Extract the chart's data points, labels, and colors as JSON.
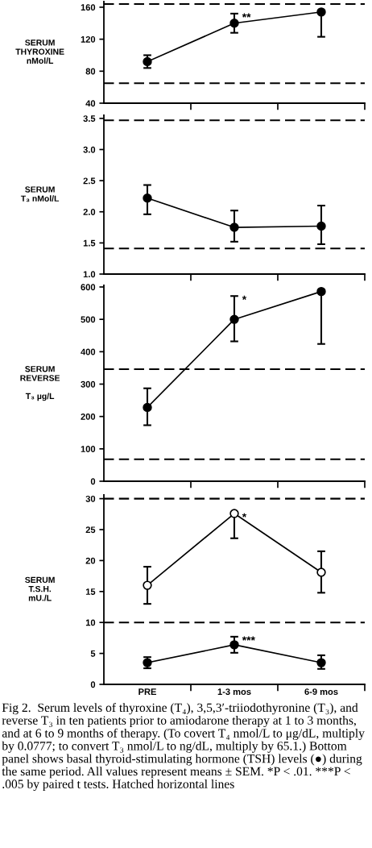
{
  "chart_data": [
    {
      "type": "line",
      "ylabel": "SERUM\nTHYROXINE\nnMol/L",
      "categories": [
        "PRE",
        "1-3 mos",
        "6-9 mos"
      ],
      "ylim": [
        40,
        167
      ],
      "yticks": [
        40,
        80,
        120,
        160
      ],
      "tick_labels": "y",
      "marker": "circle",
      "line_style": "solid",
      "grid": false,
      "series": [
        {
          "color": "#000000",
          "values": [
            92,
            140,
            154
          ],
          "errors": [
            [
              84,
              100
            ],
            [
              128,
              152
            ],
            [
              123,
              154
            ]
          ]
        }
      ],
      "ref_lines": [
        {
          "axis": "y",
          "value": 164,
          "line_style": "dashed"
        },
        {
          "axis": "y",
          "value": 65,
          "line_style": "dashed"
        }
      ],
      "annotations": [
        {
          "text": "**",
          "x": "1-3 mos",
          "y": 152
        }
      ]
    },
    {
      "type": "line",
      "ylabel": "SERUM\nT₃ nMol/L",
      "categories": [
        "PRE",
        "1-3 mos",
        "6-9 mos"
      ],
      "ylim": [
        1.0,
        3.55
      ],
      "yticks": [
        {
          "value": 1,
          "label": "1.0"
        },
        1.5,
        {
          "value": 2,
          "label": "2.0"
        },
        2.5,
        {
          "value": 3,
          "label": "3.0"
        },
        3.5
      ],
      "tick_labels": "y",
      "marker": "circle",
      "line_style": "solid",
      "grid": false,
      "series": [
        {
          "color": "#000000",
          "values": [
            2.22,
            1.75,
            1.77
          ],
          "errors": [
            [
              1.96,
              2.43
            ],
            [
              1.52,
              2.02
            ],
            [
              1.48,
              2.1
            ]
          ]
        }
      ],
      "ref_lines": [
        {
          "axis": "y",
          "value": 3.47,
          "line_style": "dashed"
        },
        {
          "axis": "y",
          "value": 1.41,
          "line_style": "dashed"
        }
      ]
    },
    {
      "type": "line",
      "ylabel": "SERUM\nREVERSE\n\nT₃ µg/L",
      "categories": [
        "PRE",
        "1-3 mos",
        "6-9 mos"
      ],
      "ylim": [
        0,
        605
      ],
      "yticks": [
        0,
        100,
        200,
        300,
        400,
        500,
        600
      ],
      "tick_labels": "y",
      "marker": "circle",
      "line_style": "solid",
      "grid": false,
      "series": [
        {
          "color": "#000000",
          "values": [
            228,
            500,
            586
          ],
          "errors": [
            [
              173,
              287
            ],
            [
              432,
              572
            ],
            [
              424,
              586
            ]
          ]
        }
      ],
      "ref_lines": [
        {
          "axis": "y",
          "value": 346,
          "line_style": "dashed"
        },
        {
          "axis": "y",
          "value": 68,
          "line_style": "dashed"
        }
      ],
      "annotations": [
        {
          "text": "*",
          "x": "1-3 mos",
          "y": 572
        }
      ]
    },
    {
      "type": "line",
      "ylabel": "SERUM\nT.S.H.\nmU./L",
      "categories": [
        "PRE",
        "1-3 mos",
        "6-9 mos"
      ],
      "ylim": [
        0,
        30.6
      ],
      "yticks": [
        0,
        5,
        10,
        15,
        20,
        25,
        30
      ],
      "marker": "circle",
      "line_style": "solid",
      "grid": false,
      "series": [
        {
          "color": "#000000",
          "colors": [
            "#ffffff",
            "#ffffff",
            "#ffffff"
          ],
          "values": [
            16.0,
            27.6,
            18.1
          ],
          "errors": [
            [
              13.0,
              19.0
            ],
            [
              23.6,
              27.6
            ],
            [
              14.8,
              21.5
            ]
          ]
        },
        {
          "color": "#000000",
          "values": [
            3.5,
            6.4,
            3.5
          ],
          "errors": [
            [
              2.6,
              4.4
            ],
            [
              5.1,
              7.7
            ],
            [
              2.5,
              4.7
            ]
          ]
        }
      ],
      "ref_lines": [
        {
          "axis": "y",
          "value": 30,
          "line_style": "dashed"
        },
        {
          "axis": "y",
          "value": 10,
          "line_style": "dashed"
        }
      ],
      "annotations": [
        {
          "text": "*",
          "x": "1-3 mos",
          "y": 27.6
        },
        {
          "text": "***",
          "x": "1-3 mos",
          "y": 7.7
        },
        "Fig 2.  Serum levels of thyroxine (T₄), 3,5,3′-triiodothyronine (T₃), and reverse T₃ in ten patients prior to amiodarone therapy at 1 to 3 months, and at 6 to 9 months of therapy. (To covert T₄ nmol/L to μg/dL, multiply by 0.0777; to convert T₃ nmol/L to ng/dL, multiply by 65.1.) Bottom panel shows basal thyroid-stimulating hormone (TSH) levels (●) during the same period. All values represent means ± SEM. *P < .01. ***P < .005 by paired t tests. Hatched horizontal lines"
      ]
    }
  ]
}
